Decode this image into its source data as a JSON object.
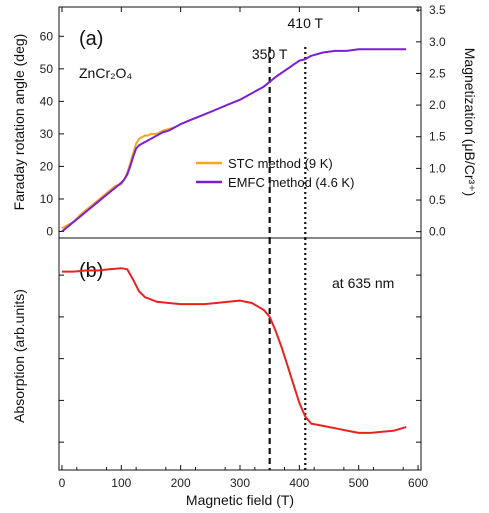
{
  "chart_data": [
    {
      "panel_label": "(a)",
      "type": "line",
      "sample_label": "ZnCr₂O₄",
      "xlim": [
        -5,
        605
      ],
      "ylabel": "Faraday rotation angle (deg)",
      "ylim": [
        -2,
        69
      ],
      "yticks": [
        0,
        10,
        20,
        30,
        40,
        50,
        60
      ],
      "ylabel_right": "Magnetization (μB/Cr³⁺)",
      "ylim_right": [
        -0.1,
        3.55
      ],
      "yticks_right": [
        0.0,
        0.5,
        1.0,
        1.5,
        2.0,
        2.5,
        3.0,
        3.5
      ],
      "yticks_right_labels": [
        "0.0",
        "0.5",
        "1.0",
        "1.5",
        "2.0",
        "2.5",
        "3.0",
        "3.5"
      ],
      "vlines": [
        {
          "x": 350,
          "label": "350 T",
          "style": "dashed"
        },
        {
          "x": 410,
          "label": "410 T",
          "style": "dotted"
        }
      ],
      "legend_position": "center-right",
      "series": [
        {
          "name": "STC method (9 K)",
          "color": "#f5a623",
          "x": [
            0,
            10,
            20,
            30,
            40,
            50,
            60,
            70,
            80,
            90,
            100,
            105,
            110,
            115,
            120,
            125,
            130,
            135,
            140,
            145,
            150,
            160,
            170,
            180,
            190
          ],
          "y": [
            1,
            2,
            3,
            5,
            6.5,
            8,
            9.5,
            11,
            12.5,
            14,
            14.5,
            16,
            18,
            21,
            24,
            27,
            28.5,
            29,
            29.5,
            29.5,
            30,
            30,
            31,
            31.5,
            32
          ]
        },
        {
          "name": "EMFC method (4.6 K)",
          "color": "#7b1fd6",
          "x": [
            0,
            10,
            20,
            30,
            40,
            50,
            60,
            70,
            80,
            90,
            100,
            105,
            110,
            115,
            120,
            125,
            130,
            140,
            150,
            160,
            170,
            180,
            200,
            220,
            240,
            260,
            280,
            300,
            320,
            340,
            350,
            360,
            380,
            400,
            410,
            420,
            440,
            460,
            480,
            500,
            520,
            540,
            560,
            580
          ],
          "y": [
            0,
            1.5,
            3,
            4.5,
            6,
            7.5,
            9,
            10.5,
            12,
            13.5,
            15,
            16,
            17.5,
            20,
            23,
            25.5,
            26.5,
            27.5,
            28.5,
            29.5,
            30.5,
            31,
            33,
            34.5,
            36,
            37.5,
            39,
            40.5,
            42.5,
            44.5,
            46,
            47.5,
            50,
            52.5,
            53,
            54,
            55,
            55.5,
            55.5,
            56,
            56,
            56,
            56,
            56
          ]
        }
      ]
    },
    {
      "panel_label": "(b)",
      "type": "line",
      "annotation": "at 635 nm",
      "xlabel": "Magnetic field (T)",
      "xlim": [
        -5,
        605
      ],
      "xticks": [
        0,
        100,
        200,
        300,
        400,
        500,
        600
      ],
      "ylabel": "Absorption (arb.units)",
      "ylim": [
        0,
        1
      ],
      "vlines": [
        {
          "x": 350,
          "style": "dashed"
        },
        {
          "x": 410,
          "style": "dotted"
        }
      ],
      "series": [
        {
          "color": "#e8231f",
          "x": [
            0,
            20,
            40,
            60,
            80,
            100,
            110,
            120,
            130,
            140,
            150,
            160,
            180,
            200,
            220,
            240,
            260,
            280,
            300,
            320,
            340,
            350,
            360,
            370,
            380,
            390,
            400,
            410,
            420,
            440,
            460,
            480,
            500,
            520,
            540,
            560,
            580
          ],
          "y": [
            0.855,
            0.855,
            0.86,
            0.86,
            0.865,
            0.87,
            0.865,
            0.82,
            0.77,
            0.745,
            0.735,
            0.725,
            0.72,
            0.715,
            0.715,
            0.715,
            0.72,
            0.725,
            0.73,
            0.72,
            0.69,
            0.66,
            0.6,
            0.53,
            0.45,
            0.37,
            0.29,
            0.23,
            0.2,
            0.19,
            0.18,
            0.17,
            0.16,
            0.16,
            0.165,
            0.17,
            0.185
          ]
        }
      ]
    }
  ]
}
